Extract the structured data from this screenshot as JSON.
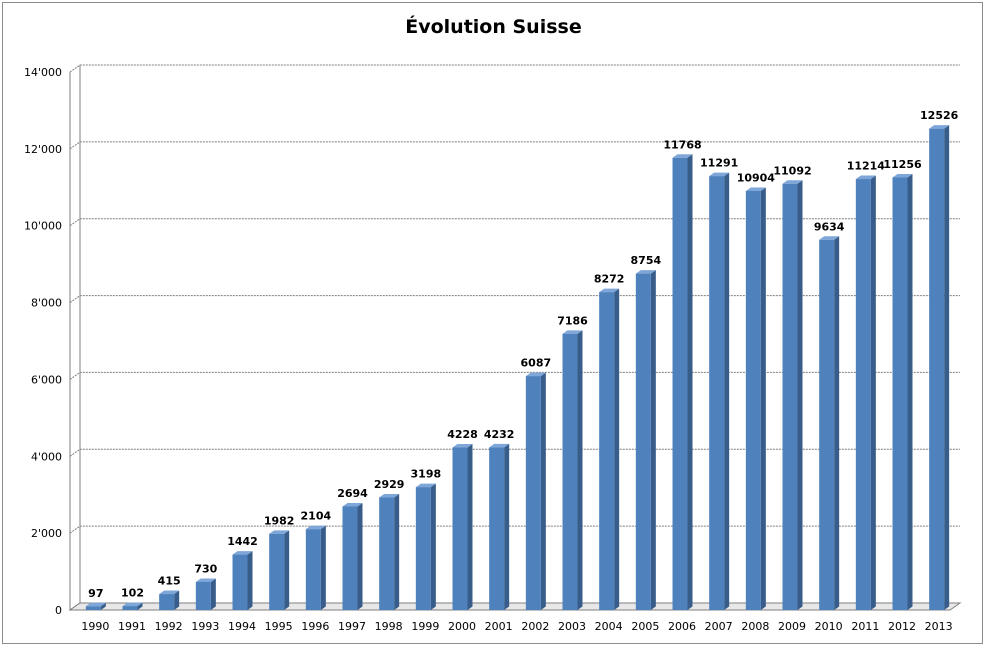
{
  "chart_data": {
    "type": "bar",
    "title": "Évolution Suisse",
    "categories": [
      "1990",
      "1991",
      "1992",
      "1993",
      "1994",
      "1995",
      "1996",
      "1997",
      "1998",
      "1999",
      "2000",
      "2001",
      "2002",
      "2003",
      "2004",
      "2005",
      "2006",
      "2007",
      "2008",
      "2009",
      "2010",
      "2011",
      "2012",
      "2013"
    ],
    "values": [
      97,
      102,
      415,
      730,
      1442,
      1982,
      2104,
      2694,
      2929,
      3198,
      4228,
      4232,
      6087,
      7186,
      8272,
      8754,
      11768,
      11291,
      10904,
      11092,
      9634,
      11214,
      11256,
      12526
    ],
    "data_labels": [
      "97",
      "102",
      "415",
      "730",
      "1442",
      "1982",
      "2104",
      "2694",
      "2929",
      "3198",
      "4228",
      "4232",
      "6087",
      "7186",
      "8272",
      "8754",
      "11768",
      "11291",
      "10904",
      "11092",
      "9634",
      "11214",
      "11256",
      "12526"
    ],
    "ylim": [
      0,
      14000
    ],
    "y_ticks": [
      0,
      2000,
      4000,
      6000,
      8000,
      10000,
      12000,
      14000
    ],
    "y_tick_labels": [
      "0",
      "2'000",
      "4'000",
      "6'000",
      "8'000",
      "10'000",
      "12'000",
      "14'000"
    ],
    "grid": true,
    "legend": false,
    "xlabel": "",
    "ylabel": "",
    "colors": {
      "bar_front": "#4f81bd",
      "bar_side": "#385d8a",
      "bar_top": "#7ea6d8",
      "grid": "#7f7f7f"
    }
  }
}
